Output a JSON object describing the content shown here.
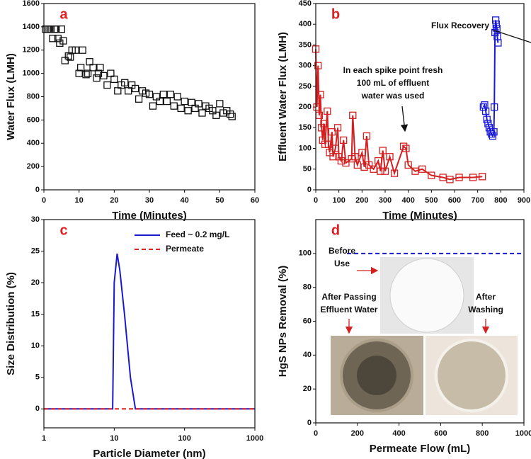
{
  "chart_data": [
    {
      "type": "scatter",
      "panel_label": "a",
      "xlabel": "Time (Minutes)",
      "ylabel": "Water Flux (LMH)",
      "xlim": [
        0,
        60
      ],
      "xticks": [
        0,
        10,
        20,
        30,
        40,
        50,
        60
      ],
      "ylim": [
        0,
        1600
      ],
      "yticks": [
        0,
        200,
        400,
        600,
        800,
        1000,
        1200,
        1400,
        1600
      ],
      "series": [
        {
          "color": "#111111",
          "marker": "square",
          "x": [
            0.5,
            1,
            1.5,
            2,
            2.5,
            3,
            3.5,
            4,
            4.5,
            5,
            5.5,
            6,
            7,
            7.5,
            8,
            9,
            10,
            10.5,
            11,
            12,
            12.5,
            13,
            14,
            15,
            15.5,
            16,
            17,
            18,
            19,
            20,
            21,
            22,
            23,
            24,
            25,
            26,
            27,
            28,
            29,
            30,
            31,
            32,
            33,
            34,
            35,
            36,
            37,
            38,
            39,
            40,
            41,
            42,
            43,
            44,
            45,
            46,
            47,
            48,
            49,
            50,
            51,
            52,
            53,
            53.5
          ],
          "values": [
            1380,
            1380,
            1380,
            1380,
            1300,
            1380,
            1380,
            1300,
            1260,
            1380,
            1280,
            1110,
            1150,
            1140,
            1200,
            1200,
            1000,
            1050,
            1200,
            990,
            1000,
            1100,
            1050,
            960,
            1000,
            1050,
            980,
            900,
            1000,
            950,
            850,
            900,
            920,
            850,
            900,
            870,
            780,
            850,
            830,
            820,
            720,
            800,
            760,
            820,
            760,
            820,
            720,
            800,
            700,
            760,
            680,
            750,
            700,
            740,
            660,
            720,
            700,
            680,
            640,
            740,
            660,
            680,
            650,
            630
          ]
        }
      ]
    },
    {
      "type": "line",
      "panel_label": "b",
      "xlabel": "Time (Minutes)",
      "ylabel": "Effluent Water Flux (LMH)",
      "xlim": [
        0,
        900
      ],
      "xticks": [
        0,
        100,
        200,
        300,
        400,
        500,
        600,
        700,
        800,
        900
      ],
      "ylim": [
        0,
        450
      ],
      "yticks": [
        0,
        50,
        100,
        150,
        200,
        250,
        300,
        350,
        400,
        450
      ],
      "annotations": [
        [
          "In each spike point fresh",
          "100 mL of effluent",
          "water was used"
        ],
        [
          "Flux Recovery"
        ]
      ],
      "series": [
        {
          "color": "#d42020",
          "marker": "square",
          "x": [
            0,
            5,
            10,
            15,
            20,
            25,
            30,
            35,
            40,
            50,
            55,
            60,
            70,
            75,
            85,
            95,
            100,
            110,
            120,
            130,
            155,
            160,
            170,
            180,
            200,
            210,
            220,
            230,
            250,
            270,
            280,
            290,
            300,
            320,
            340,
            380,
            390,
            400,
            430,
            460,
            500,
            550,
            580,
            620,
            680,
            720
          ],
          "values": [
            340,
            200,
            300,
            180,
            230,
            150,
            120,
            160,
            110,
            190,
            110,
            90,
            140,
            80,
            100,
            150,
            80,
            70,
            120,
            65,
            75,
            180,
            80,
            60,
            90,
            55,
            130,
            60,
            50,
            70,
            45,
            95,
            45,
            80,
            40,
            105,
            100,
            60,
            45,
            50,
            35,
            30,
            25,
            30,
            30,
            32
          ]
        },
        {
          "color": "#1a1adc",
          "marker": "square",
          "x": [
            725,
            730,
            735,
            740,
            745,
            750,
            755,
            760,
            765,
            770,
            772,
            775,
            778,
            780,
            783,
            785,
            788
          ],
          "values": [
            200,
            205,
            190,
            170,
            160,
            150,
            140,
            135,
            130,
            140,
            200,
            380,
            410,
            400,
            390,
            370,
            355
          ]
        }
      ]
    },
    {
      "type": "line",
      "panel_label": "c",
      "xlabel": "Particle Diameter (nm)",
      "ylabel": "Size Distribution (%)",
      "log_x": true,
      "xlim": [
        1,
        1000
      ],
      "xticks": [
        1,
        10,
        100,
        1000
      ],
      "ylim": [
        -3,
        30
      ],
      "yticks": [
        0,
        5,
        10,
        15,
        20,
        25,
        30
      ],
      "legend": "upper right",
      "series": [
        {
          "name": "Feed ~ 0.2 mg/L",
          "color": "#1a1acc",
          "x": [
            1,
            9.5,
            10,
            11,
            12,
            14,
            17,
            20,
            1000
          ],
          "values": [
            0,
            0,
            20,
            24.6,
            22,
            15,
            5,
            0,
            0
          ]
        },
        {
          "name": "Permeate",
          "color": "#dd2222",
          "dash": true,
          "x": [
            1,
            1000
          ],
          "values": [
            0,
            0
          ]
        }
      ]
    },
    {
      "type": "line",
      "panel_label": "d",
      "xlabel": "Permeate Flow (mL)",
      "ylabel": "HgS NPs Removal (%)",
      "xlim": [
        0,
        1000
      ],
      "xticks": [
        0,
        200,
        400,
        600,
        800,
        1000
      ],
      "ylim": [
        0,
        120
      ],
      "yticks": [
        0,
        20,
        40,
        60,
        80,
        100
      ],
      "annotations": [
        [
          "Before",
          "Use"
        ],
        [
          "After Passing",
          "Effluent Water"
        ],
        [
          "After",
          "Washing"
        ]
      ],
      "series": [
        {
          "color": "#1a1acc",
          "dash": true,
          "x": [
            150,
            1000
          ],
          "values": [
            100,
            100
          ]
        }
      ]
    }
  ]
}
